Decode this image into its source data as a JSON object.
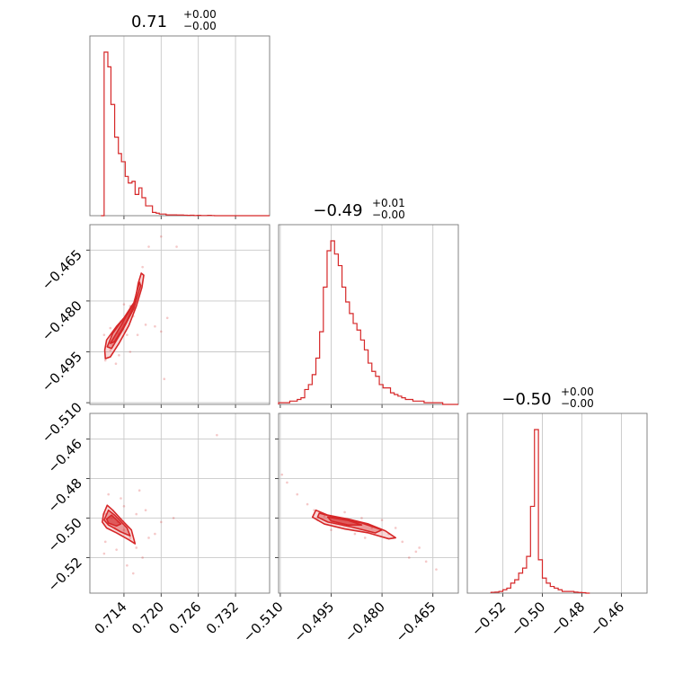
{
  "chart_data": {
    "type": "corner",
    "color": "#d62728",
    "grid": true,
    "parameters": [
      {
        "range": [
          0.7085,
          0.7375
        ],
        "ticks": [
          0.714,
          0.72,
          0.726,
          0.732
        ],
        "tick_labels": [
          "0.714",
          "0.720",
          "0.726",
          "0.732"
        ],
        "title_value": "0.71",
        "title_plus": "+0.00",
        "title_minus": "−0.00",
        "hist_edges": [
          0.7103,
          0.7108,
          0.7114,
          0.7119,
          0.7125,
          0.7131,
          0.7136,
          0.7142,
          0.7147,
          0.7153,
          0.7158,
          0.7164,
          0.7169,
          0.7175,
          0.718,
          0.7186,
          0.7192,
          0.7197,
          0.7203,
          0.7208,
          0.7214,
          0.722,
          0.7225,
          0.7231,
          0.7236,
          0.7242,
          0.7247,
          0.7253,
          0.7258,
          0.7264,
          0.727,
          0.7275,
          0.7281,
          0.7286,
          0.7292,
          0.7297,
          0.7303,
          0.7309,
          0.7314,
          0.732,
          0.7325,
          0.7331,
          0.7336,
          0.7342,
          0.7347,
          0.7353,
          0.7358,
          0.7364,
          0.737,
          0.7375
        ],
        "hist_counts": [
          0.0,
          1.0,
          0.91,
          0.68,
          0.48,
          0.38,
          0.33,
          0.24,
          0.2,
          0.21,
          0.13,
          0.17,
          0.11,
          0.06,
          0.06,
          0.02,
          0.015,
          0.01,
          0.01,
          0.005,
          0.005,
          0.005,
          0.004,
          0.004,
          0.003,
          0.002,
          0.003,
          0.001,
          0.002,
          0.001,
          0.001,
          0.002,
          0.001,
          0.0,
          0.0,
          0.0,
          0.0,
          0.0,
          0.0,
          0.0,
          0.0,
          0.0,
          0.0,
          0.0,
          0.0,
          0.0,
          0.0,
          0.0,
          0.0
        ]
      },
      {
        "range": [
          -0.5105,
          -0.4575
        ],
        "ticks": [
          -0.51,
          -0.495,
          -0.48,
          -0.465
        ],
        "tick_labels": [
          "−0.510",
          "−0.495",
          "−0.480",
          "−0.465"
        ],
        "title_value": "−0.49",
        "title_plus": "+0.01",
        "title_minus": "−0.00",
        "hist_edges": [
          -0.5105,
          -0.5094,
          -0.5083,
          -0.5072,
          -0.5061,
          -0.505,
          -0.5039,
          -0.5028,
          -0.5017,
          -0.5006,
          -0.4995,
          -0.4984,
          -0.4973,
          -0.4962,
          -0.4951,
          -0.494,
          -0.4929,
          -0.4918,
          -0.4907,
          -0.4896,
          -0.4885,
          -0.4874,
          -0.4863,
          -0.4852,
          -0.4841,
          -0.483,
          -0.4819,
          -0.4808,
          -0.4797,
          -0.4786,
          -0.4775,
          -0.4764,
          -0.4753,
          -0.4742,
          -0.4731,
          -0.472,
          -0.4709,
          -0.4698,
          -0.4687,
          -0.4676,
          -0.4665,
          -0.4654,
          -0.4643,
          -0.4632,
          -0.4621,
          -0.461,
          -0.4599,
          -0.4588,
          -0.4575
        ],
        "hist_counts": [
          0.01,
          0.01,
          0.01,
          0.02,
          0.02,
          0.03,
          0.04,
          0.09,
          0.12,
          0.18,
          0.28,
          0.44,
          0.71,
          0.93,
          0.99,
          0.91,
          0.84,
          0.71,
          0.62,
          0.55,
          0.49,
          0.45,
          0.39,
          0.33,
          0.25,
          0.2,
          0.17,
          0.12,
          0.1,
          0.1,
          0.07,
          0.06,
          0.05,
          0.04,
          0.03,
          0.03,
          0.02,
          0.02,
          0.02,
          0.01,
          0.01,
          0.01,
          0.01,
          0.01,
          0.0,
          0.0,
          0.0,
          0.0
        ]
      },
      {
        "range": [
          -0.538,
          -0.447
        ],
        "ticks": [
          -0.52,
          -0.5,
          -0.48,
          -0.46
        ],
        "tick_labels": [
          "−0.52",
          "−0.50",
          "−0.48",
          "−0.46"
        ],
        "title_value": "−0.50",
        "title_plus": "+0.00",
        "title_minus": "−0.00",
        "hist_edges": [
          -0.526,
          -0.524,
          -0.522,
          -0.52,
          -0.518,
          -0.516,
          -0.514,
          -0.512,
          -0.51,
          -0.508,
          -0.506,
          -0.504,
          -0.502,
          -0.5,
          -0.498,
          -0.496,
          -0.494,
          -0.492,
          -0.49,
          -0.488,
          -0.486,
          -0.484,
          -0.482,
          -0.48,
          -0.478,
          -0.476
        ],
        "hist_counts": [
          0.005,
          0.006,
          0.01,
          0.02,
          0.03,
          0.06,
          0.08,
          0.12,
          0.15,
          0.22,
          0.52,
          0.98,
          0.2,
          0.09,
          0.06,
          0.04,
          0.03,
          0.02,
          0.01,
          0.01,
          0.01,
          0.006,
          0.004,
          0.003,
          0.0
        ]
      }
    ],
    "pairs": [
      {
        "x_param": 0,
        "y_param": 1,
        "contours": [
          [
            [
              0.7109,
              -0.4945
            ],
            [
              0.7112,
              -0.4915
            ],
            [
              0.7128,
              -0.4875
            ],
            [
              0.7146,
              -0.4838
            ],
            [
              0.7158,
              -0.48
            ],
            [
              0.7163,
              -0.4748
            ],
            [
              0.7168,
              -0.4718
            ],
            [
              0.7172,
              -0.4724
            ],
            [
              0.7169,
              -0.476
            ],
            [
              0.716,
              -0.4815
            ],
            [
              0.7148,
              -0.4872
            ],
            [
              0.7132,
              -0.4925
            ],
            [
              0.7118,
              -0.4965
            ],
            [
              0.711,
              -0.497
            ]
          ],
          [
            [
              0.7113,
              -0.4935
            ],
            [
              0.7122,
              -0.4895
            ],
            [
              0.714,
              -0.485
            ],
            [
              0.7156,
              -0.4805
            ],
            [
              0.7165,
              -0.4745
            ],
            [
              0.7167,
              -0.4755
            ],
            [
              0.7156,
              -0.4822
            ],
            [
              0.7138,
              -0.4885
            ],
            [
              0.712,
              -0.494
            ]
          ],
          [
            [
              0.7118,
              -0.4925
            ],
            [
              0.7136,
              -0.487
            ],
            [
              0.7152,
              -0.4815
            ],
            [
              0.7158,
              -0.4805
            ],
            [
              0.7144,
              -0.4862
            ],
            [
              0.7125,
              -0.492
            ]
          ]
        ],
        "points": [
          [
            0.713,
            -0.4895
          ],
          [
            0.714,
            -0.487
          ],
          [
            0.715,
            -0.4815
          ],
          [
            0.7118,
            -0.4945
          ],
          [
            0.7122,
            -0.493
          ],
          [
            0.7135,
            -0.486
          ],
          [
            0.716,
            -0.478
          ],
          [
            0.7165,
            -0.4745
          ],
          [
            0.711,
            -0.4975
          ],
          [
            0.7127,
            -0.4985
          ],
          [
            0.7145,
            -0.49
          ],
          [
            0.7155,
            -0.4845
          ],
          [
            0.717,
            -0.47
          ],
          [
            0.718,
            -0.464
          ],
          [
            0.719,
            -0.4875
          ],
          [
            0.72,
            -0.489
          ],
          [
            0.7205,
            -0.503
          ],
          [
            0.7225,
            -0.464
          ],
          [
            0.7118,
            -0.488
          ],
          [
            0.714,
            -0.481
          ],
          [
            0.7162,
            -0.49
          ],
          [
            0.7108,
            -0.49
          ],
          [
            0.715,
            -0.495
          ],
          [
            0.7175,
            -0.487
          ],
          [
            0.7132,
            -0.496
          ],
          [
            0.72,
            -0.461
          ],
          [
            0.721,
            -0.485
          ]
        ]
      },
      {
        "x_param": 0,
        "y_param": 2,
        "contours": [
          [
            [
              0.7105,
              -0.502
            ],
            [
              0.7107,
              -0.498
            ],
            [
              0.7113,
              -0.4935
            ],
            [
              0.7122,
              -0.496
            ],
            [
              0.7135,
              -0.5005
            ],
            [
              0.7152,
              -0.506
            ],
            [
              0.7158,
              -0.513
            ],
            [
              0.7148,
              -0.511
            ],
            [
              0.7128,
              -0.5075
            ],
            [
              0.7112,
              -0.505
            ]
          ],
          [
            [
              0.7108,
              -0.501
            ],
            [
              0.7115,
              -0.496
            ],
            [
              0.7125,
              -0.4985
            ],
            [
              0.7145,
              -0.505
            ],
            [
              0.715,
              -0.509
            ],
            [
              0.7135,
              -0.507
            ],
            [
              0.7115,
              -0.5035
            ]
          ],
          [
            [
              0.7112,
              -0.5005
            ],
            [
              0.712,
              -0.4985
            ],
            [
              0.7135,
              -0.503
            ],
            [
              0.7128,
              -0.504
            ],
            [
              0.7115,
              -0.5025
            ]
          ]
        ],
        "points": [
          [
            0.712,
            -0.5
          ],
          [
            0.713,
            -0.502
          ],
          [
            0.714,
            -0.506
          ],
          [
            0.711,
            -0.498
          ],
          [
            0.7125,
            -0.505
          ],
          [
            0.715,
            -0.51
          ],
          [
            0.716,
            -0.515
          ],
          [
            0.717,
            -0.52
          ],
          [
            0.7108,
            -0.518
          ],
          [
            0.7115,
            -0.488
          ],
          [
            0.7135,
            -0.49
          ],
          [
            0.7165,
            -0.486
          ],
          [
            0.7175,
            -0.496
          ],
          [
            0.719,
            -0.508
          ],
          [
            0.72,
            -0.502
          ],
          [
            0.7145,
            -0.524
          ],
          [
            0.7155,
            -0.528
          ],
          [
            0.722,
            -0.5
          ],
          [
            0.711,
            -0.512
          ],
          [
            0.7128,
            -0.516
          ],
          [
            0.718,
            -0.51
          ],
          [
            0.729,
            -0.458
          ],
          [
            0.714,
            -0.494
          ],
          [
            0.716,
            -0.498
          ]
        ]
      },
      {
        "x_param": 1,
        "y_param": 2,
        "contours": [
          [
            [
              -0.4995,
              -0.496
            ],
            [
              -0.496,
              -0.4985
            ],
            [
              -0.49,
              -0.5005
            ],
            [
              -0.484,
              -0.503
            ],
            [
              -0.479,
              -0.5065
            ],
            [
              -0.476,
              -0.51
            ],
            [
              -0.478,
              -0.5105
            ],
            [
              -0.484,
              -0.5075
            ],
            [
              -0.491,
              -0.5055
            ],
            [
              -0.497,
              -0.503
            ],
            [
              -0.5005,
              -0.4995
            ]
          ],
          [
            [
              -0.4985,
              -0.4975
            ],
            [
              -0.493,
              -0.5
            ],
            [
              -0.486,
              -0.5025
            ],
            [
              -0.48,
              -0.506
            ],
            [
              -0.482,
              -0.5075
            ],
            [
              -0.489,
              -0.5045
            ],
            [
              -0.496,
              -0.502
            ],
            [
              -0.499,
              -0.4995
            ]
          ],
          [
            [
              -0.496,
              -0.4995
            ],
            [
              -0.49,
              -0.5012
            ],
            [
              -0.486,
              -0.5035
            ],
            [
              -0.49,
              -0.5035
            ],
            [
              -0.495,
              -0.5015
            ]
          ]
        ],
        "points": [
          [
            -0.497,
            -0.499
          ],
          [
            -0.493,
            -0.5
          ],
          [
            -0.488,
            -0.502
          ],
          [
            -0.483,
            -0.505
          ],
          [
            -0.478,
            -0.508
          ],
          [
            -0.474,
            -0.512
          ],
          [
            -0.47,
            -0.517
          ],
          [
            -0.467,
            -0.522
          ],
          [
            -0.464,
            -0.526
          ],
          [
            -0.502,
            -0.493
          ],
          [
            -0.505,
            -0.488
          ],
          [
            -0.508,
            -0.482
          ],
          [
            -0.5095,
            -0.478
          ],
          [
            -0.491,
            -0.497
          ],
          [
            -0.486,
            -0.5
          ],
          [
            -0.48,
            -0.501
          ],
          [
            -0.476,
            -0.505
          ],
          [
            -0.495,
            -0.506
          ],
          [
            -0.488,
            -0.508
          ],
          [
            -0.472,
            -0.52
          ],
          [
            -0.469,
            -0.515
          ],
          [
            -0.499,
            -0.501
          ],
          [
            -0.5,
            -0.496
          ],
          [
            -0.485,
            -0.51
          ]
        ]
      }
    ]
  }
}
